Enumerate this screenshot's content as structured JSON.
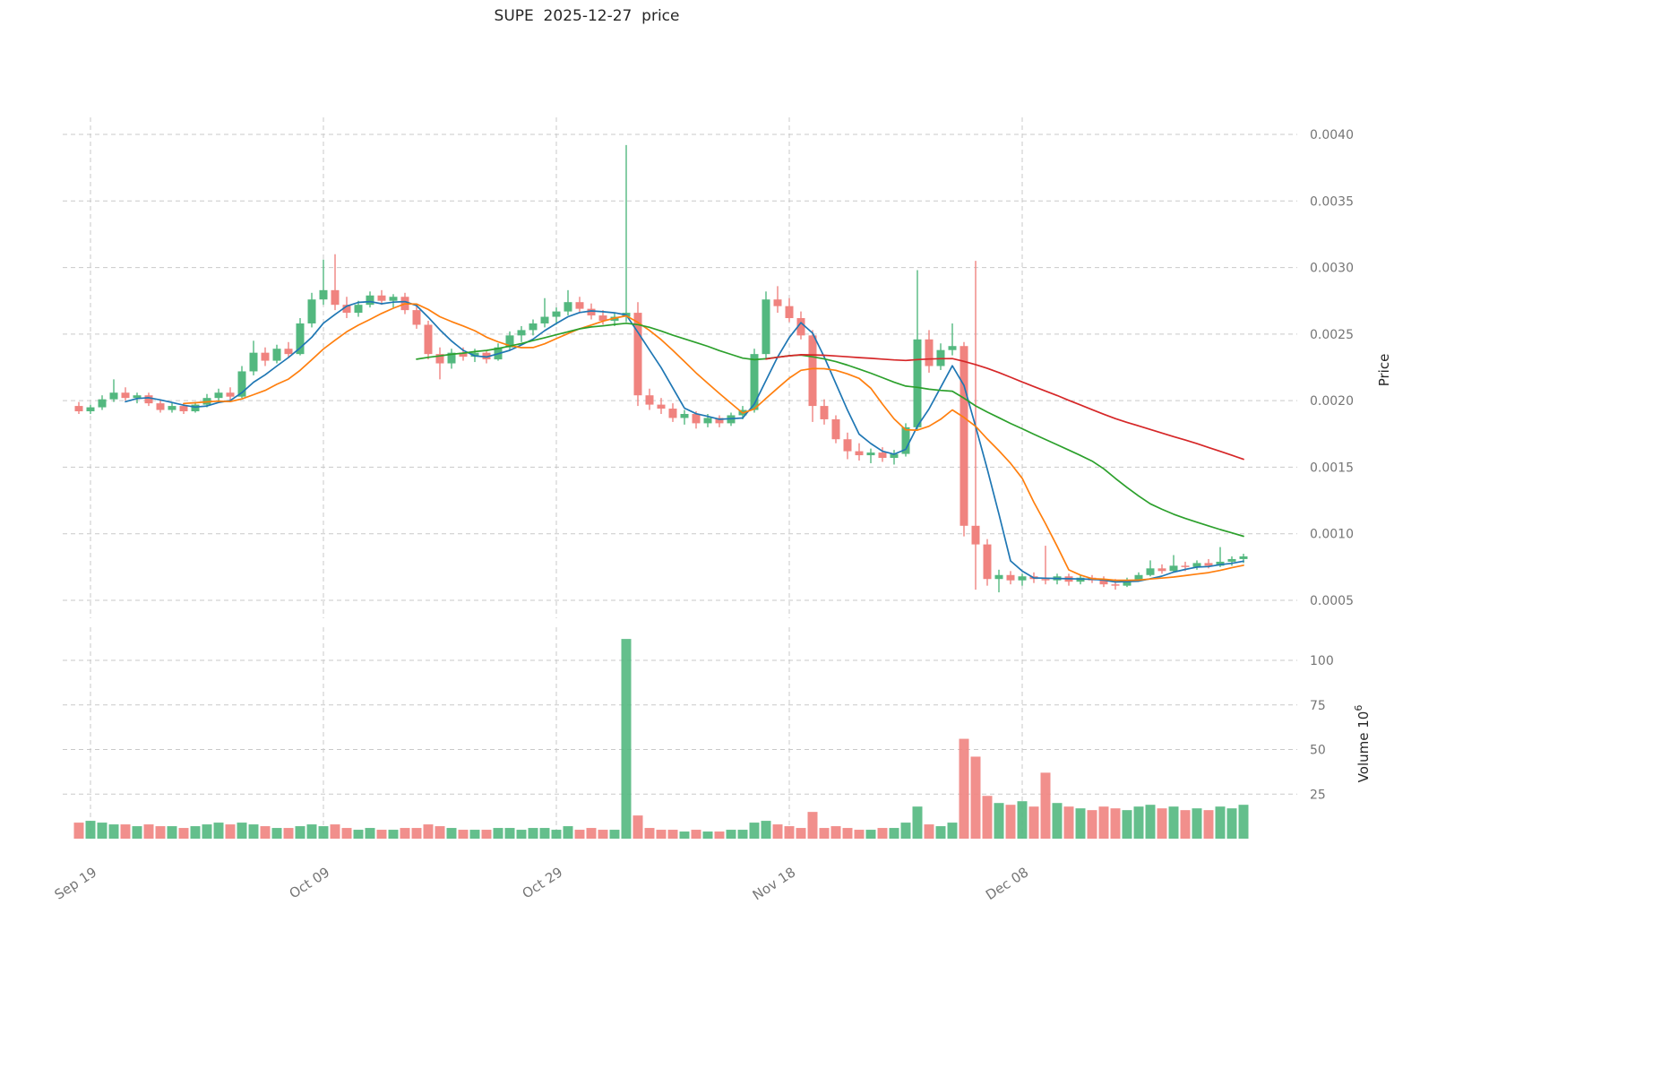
{
  "title": "SUPE  2025-12-27  price",
  "chart_data": {
    "type": "candlestick",
    "symbol": "SUPE",
    "as_of_date": "2025-12-27",
    "title": "SUPE  2025-12-27  price",
    "price_axis": {
      "label": "Price",
      "ticks": [
        0.004,
        0.0035,
        0.003,
        0.0025,
        0.002,
        0.0015,
        0.001,
        0.0005
      ]
    },
    "volume_axis": {
      "label": "Volume",
      "unit_base": "10",
      "unit_exponent": "6",
      "ticks": [
        100,
        75,
        50,
        25
      ]
    },
    "x_axis": {
      "ticks": [
        {
          "label": "Sep 19",
          "date": "2025-09-19"
        },
        {
          "label": "Oct 09",
          "date": "2025-10-09"
        },
        {
          "label": "Oct 29",
          "date": "2025-10-29"
        },
        {
          "label": "Nov 18",
          "date": "2025-11-18"
        },
        {
          "label": "Dec 08",
          "date": "2025-12-08"
        }
      ]
    },
    "moving_averages": [
      {
        "window": 5,
        "color": "#1f77b4"
      },
      {
        "window": 10,
        "color": "#ff7f0e"
      },
      {
        "window": 30,
        "color": "#2ca02c"
      },
      {
        "window": 60,
        "color": "#d62728"
      }
    ],
    "colors": {
      "up": "#53b87f",
      "down": "#f0837f",
      "grid": "#c9c9c9"
    },
    "ohlcv_columns": [
      "date",
      "open",
      "high",
      "low",
      "close",
      "volume_millions"
    ],
    "ohlcv": [
      [
        "2025-09-18",
        0.00196,
        0.00199,
        0.0019,
        0.00192,
        9
      ],
      [
        "2025-09-19",
        0.00192,
        0.00197,
        0.0019,
        0.00195,
        10
      ],
      [
        "2025-09-20",
        0.00195,
        0.00204,
        0.00193,
        0.00201,
        9
      ],
      [
        "2025-09-21",
        0.00201,
        0.00216,
        0.00199,
        0.00206,
        8
      ],
      [
        "2025-09-22",
        0.00206,
        0.0021,
        0.002,
        0.00202,
        8
      ],
      [
        "2025-09-23",
        0.00202,
        0.00206,
        0.00198,
        0.00204,
        7
      ],
      [
        "2025-09-24",
        0.00204,
        0.00206,
        0.00196,
        0.00198,
        8
      ],
      [
        "2025-09-25",
        0.00198,
        0.002,
        0.00191,
        0.00193,
        7
      ],
      [
        "2025-09-26",
        0.00193,
        0.00199,
        0.00191,
        0.00196,
        7
      ],
      [
        "2025-09-27",
        0.00196,
        0.00198,
        0.0019,
        0.00192,
        6
      ],
      [
        "2025-09-28",
        0.00192,
        0.00199,
        0.00191,
        0.00197,
        7
      ],
      [
        "2025-09-29",
        0.00197,
        0.00205,
        0.00195,
        0.00202,
        8
      ],
      [
        "2025-09-30",
        0.00202,
        0.00209,
        0.00199,
        0.00206,
        9
      ],
      [
        "2025-10-01",
        0.00206,
        0.0021,
        0.002,
        0.00203,
        8
      ],
      [
        "2025-10-02",
        0.00203,
        0.00226,
        0.00202,
        0.00222,
        9
      ],
      [
        "2025-10-03",
        0.00222,
        0.00245,
        0.00219,
        0.00236,
        8
      ],
      [
        "2025-10-04",
        0.00236,
        0.0024,
        0.00226,
        0.0023,
        7
      ],
      [
        "2025-10-05",
        0.0023,
        0.00242,
        0.00228,
        0.00239,
        6
      ],
      [
        "2025-10-06",
        0.00239,
        0.00244,
        0.00232,
        0.00235,
        6
      ],
      [
        "2025-10-07",
        0.00235,
        0.00262,
        0.00234,
        0.00258,
        7
      ],
      [
        "2025-10-08",
        0.00258,
        0.00281,
        0.00255,
        0.00276,
        8
      ],
      [
        "2025-10-09",
        0.00276,
        0.00306,
        0.00272,
        0.00283,
        7
      ],
      [
        "2025-10-10",
        0.00283,
        0.0031,
        0.00268,
        0.00272,
        8
      ],
      [
        "2025-10-11",
        0.00272,
        0.00278,
        0.00262,
        0.00266,
        6
      ],
      [
        "2025-10-12",
        0.00266,
        0.00275,
        0.00263,
        0.00272,
        5
      ],
      [
        "2025-10-13",
        0.00272,
        0.00282,
        0.0027,
        0.00279,
        6
      ],
      [
        "2025-10-14",
        0.00279,
        0.00283,
        0.00272,
        0.00275,
        5
      ],
      [
        "2025-10-15",
        0.00275,
        0.0028,
        0.0027,
        0.00278,
        5
      ],
      [
        "2025-10-16",
        0.00278,
        0.00281,
        0.00265,
        0.00268,
        6
      ],
      [
        "2025-10-17",
        0.00268,
        0.00272,
        0.00254,
        0.00257,
        6
      ],
      [
        "2025-10-18",
        0.00257,
        0.0026,
        0.00231,
        0.00235,
        8
      ],
      [
        "2025-10-19",
        0.00235,
        0.0024,
        0.00216,
        0.00228,
        7
      ],
      [
        "2025-10-20",
        0.00228,
        0.00239,
        0.00224,
        0.00236,
        6
      ],
      [
        "2025-10-21",
        0.00236,
        0.0024,
        0.0023,
        0.00233,
        5
      ],
      [
        "2025-10-22",
        0.00233,
        0.00239,
        0.00229,
        0.00236,
        5
      ],
      [
        "2025-10-23",
        0.00236,
        0.00238,
        0.00228,
        0.00231,
        5
      ],
      [
        "2025-10-24",
        0.00231,
        0.00243,
        0.0023,
        0.0024,
        6
      ],
      [
        "2025-10-25",
        0.0024,
        0.00252,
        0.00238,
        0.00249,
        6
      ],
      [
        "2025-10-26",
        0.00249,
        0.00256,
        0.00244,
        0.00253,
        5
      ],
      [
        "2025-10-27",
        0.00253,
        0.00261,
        0.00249,
        0.00258,
        6
      ],
      [
        "2025-10-28",
        0.00258,
        0.00277,
        0.00255,
        0.00263,
        6
      ],
      [
        "2025-10-29",
        0.00263,
        0.0027,
        0.00257,
        0.00267,
        5
      ],
      [
        "2025-10-30",
        0.00267,
        0.00283,
        0.00264,
        0.00274,
        7
      ],
      [
        "2025-10-31",
        0.00274,
        0.00278,
        0.00266,
        0.00269,
        5
      ],
      [
        "2025-11-01",
        0.00269,
        0.00273,
        0.00261,
        0.00264,
        6
      ],
      [
        "2025-11-02",
        0.00264,
        0.00268,
        0.00257,
        0.0026,
        5
      ],
      [
        "2025-11-03",
        0.0026,
        0.00266,
        0.00256,
        0.00263,
        5
      ],
      [
        "2025-11-04",
        0.00263,
        0.00392,
        0.00259,
        0.00266,
        112
      ],
      [
        "2025-11-05",
        0.00266,
        0.00274,
        0.00196,
        0.00204,
        13
      ],
      [
        "2025-11-06",
        0.00204,
        0.00209,
        0.00193,
        0.00197,
        6
      ],
      [
        "2025-11-07",
        0.00197,
        0.00202,
        0.0019,
        0.00194,
        5
      ],
      [
        "2025-11-08",
        0.00194,
        0.00198,
        0.00184,
        0.00187,
        5
      ],
      [
        "2025-11-09",
        0.00187,
        0.00193,
        0.00182,
        0.0019,
        4
      ],
      [
        "2025-11-10",
        0.0019,
        0.00192,
        0.00179,
        0.00183,
        5
      ],
      [
        "2025-11-11",
        0.00183,
        0.0019,
        0.0018,
        0.00187,
        4
      ],
      [
        "2025-11-12",
        0.00187,
        0.00189,
        0.0018,
        0.00183,
        4
      ],
      [
        "2025-11-13",
        0.00183,
        0.00191,
        0.00181,
        0.00189,
        5
      ],
      [
        "2025-11-14",
        0.00189,
        0.00196,
        0.00186,
        0.00193,
        5
      ],
      [
        "2025-11-15",
        0.00193,
        0.00239,
        0.00191,
        0.00235,
        9
      ],
      [
        "2025-11-16",
        0.00235,
        0.00282,
        0.00232,
        0.00276,
        10
      ],
      [
        "2025-11-17",
        0.00276,
        0.00286,
        0.00266,
        0.00271,
        8
      ],
      [
        "2025-11-18",
        0.00271,
        0.00277,
        0.00259,
        0.00262,
        7
      ],
      [
        "2025-11-19",
        0.00262,
        0.00267,
        0.00246,
        0.00249,
        6
      ],
      [
        "2025-11-20",
        0.00249,
        0.00253,
        0.00184,
        0.00196,
        15
      ],
      [
        "2025-11-21",
        0.00196,
        0.00201,
        0.00182,
        0.00186,
        6
      ],
      [
        "2025-11-22",
        0.00186,
        0.00189,
        0.00168,
        0.00171,
        7
      ],
      [
        "2025-11-23",
        0.00171,
        0.00176,
        0.00156,
        0.00162,
        6
      ],
      [
        "2025-11-24",
        0.00162,
        0.00168,
        0.00155,
        0.00159,
        5
      ],
      [
        "2025-11-25",
        0.00159,
        0.00164,
        0.00153,
        0.00161,
        5
      ],
      [
        "2025-11-26",
        0.00161,
        0.00165,
        0.00154,
        0.00157,
        6
      ],
      [
        "2025-11-27",
        0.00157,
        0.00163,
        0.00152,
        0.0016,
        6
      ],
      [
        "2025-11-28",
        0.0016,
        0.00183,
        0.00158,
        0.0018,
        9
      ],
      [
        "2025-11-29",
        0.0018,
        0.00298,
        0.00178,
        0.00246,
        18
      ],
      [
        "2025-11-30",
        0.00246,
        0.00253,
        0.00221,
        0.00226,
        8
      ],
      [
        "2025-12-01",
        0.00226,
        0.00243,
        0.00223,
        0.00238,
        7
      ],
      [
        "2025-12-02",
        0.00238,
        0.00258,
        0.00234,
        0.00241,
        9
      ],
      [
        "2025-12-03",
        0.00241,
        0.00244,
        0.00098,
        0.00106,
        56
      ],
      [
        "2025-12-04",
        0.00106,
        0.00305,
        0.00058,
        0.00092,
        46
      ],
      [
        "2025-12-05",
        0.00092,
        0.00096,
        0.00061,
        0.00066,
        24
      ],
      [
        "2025-12-06",
        0.00066,
        0.00073,
        0.00056,
        0.00069,
        20
      ],
      [
        "2025-12-07",
        0.00069,
        0.00072,
        0.00062,
        0.00065,
        19
      ],
      [
        "2025-12-08",
        0.00065,
        0.0007,
        0.00061,
        0.00068,
        21
      ],
      [
        "2025-12-09",
        0.00068,
        0.00071,
        0.00063,
        0.00066,
        18
      ],
      [
        "2025-12-10",
        0.00066,
        0.00091,
        0.00062,
        0.00065,
        37
      ],
      [
        "2025-12-11",
        0.00065,
        0.0007,
        0.00062,
        0.00068,
        20
      ],
      [
        "2025-12-12",
        0.00068,
        0.0007,
        0.00061,
        0.00064,
        18
      ],
      [
        "2025-12-13",
        0.00064,
        0.00069,
        0.00062,
        0.00067,
        17
      ],
      [
        "2025-12-14",
        0.00067,
        0.00069,
        0.00063,
        0.00065,
        16
      ],
      [
        "2025-12-15",
        0.00065,
        0.00068,
        0.0006,
        0.00062,
        18
      ],
      [
        "2025-12-16",
        0.00062,
        0.00066,
        0.00058,
        0.00061,
        17
      ],
      [
        "2025-12-17",
        0.00061,
        0.00067,
        0.0006,
        0.00065,
        16
      ],
      [
        "2025-12-18",
        0.00065,
        0.00071,
        0.00064,
        0.00069,
        18
      ],
      [
        "2025-12-19",
        0.00069,
        0.0008,
        0.00068,
        0.00074,
        19
      ],
      [
        "2025-12-20",
        0.00074,
        0.00077,
        0.0007,
        0.00072,
        17
      ],
      [
        "2025-12-21",
        0.00072,
        0.00084,
        0.00071,
        0.00076,
        18
      ],
      [
        "2025-12-22",
        0.00076,
        0.00079,
        0.00072,
        0.00075,
        16
      ],
      [
        "2025-12-23",
        0.00075,
        0.0008,
        0.00073,
        0.00078,
        17
      ],
      [
        "2025-12-24",
        0.00078,
        0.00081,
        0.00074,
        0.00076,
        16
      ],
      [
        "2025-12-25",
        0.00076,
        0.0009,
        0.00075,
        0.00079,
        18
      ],
      [
        "2025-12-26",
        0.00079,
        0.00083,
        0.00076,
        0.00081,
        17
      ],
      [
        "2025-12-27",
        0.00081,
        0.00085,
        0.00078,
        0.00083,
        19
      ]
    ]
  }
}
